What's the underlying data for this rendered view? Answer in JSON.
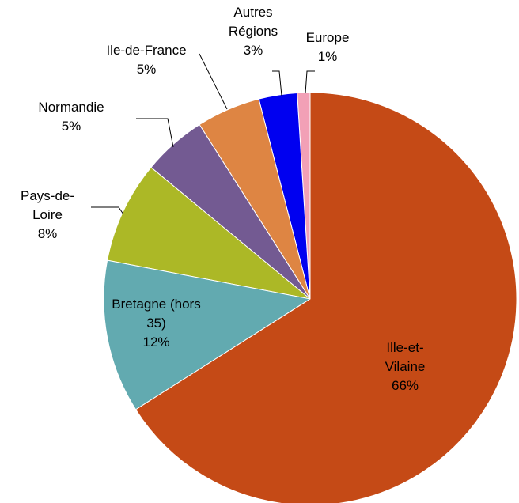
{
  "chart_data": {
    "type": "pie",
    "categories": [
      "Ille-et-Vilaine",
      "Bretagne (hors 35)",
      "Pays-de-Loire",
      "Normandie",
      "Ile-de-France",
      "Autres Régions",
      "Europe"
    ],
    "values": [
      66,
      12,
      8,
      5,
      5,
      3,
      1
    ],
    "value_labels": [
      "66%",
      "12%",
      "8%",
      "5%",
      "5%",
      "3%",
      "1%"
    ],
    "colors": [
      "#c54a16",
      "#62aab0",
      "#acb826",
      "#735a92",
      "#de8543",
      "#0000f0",
      "#f2a0b6"
    ]
  }
}
